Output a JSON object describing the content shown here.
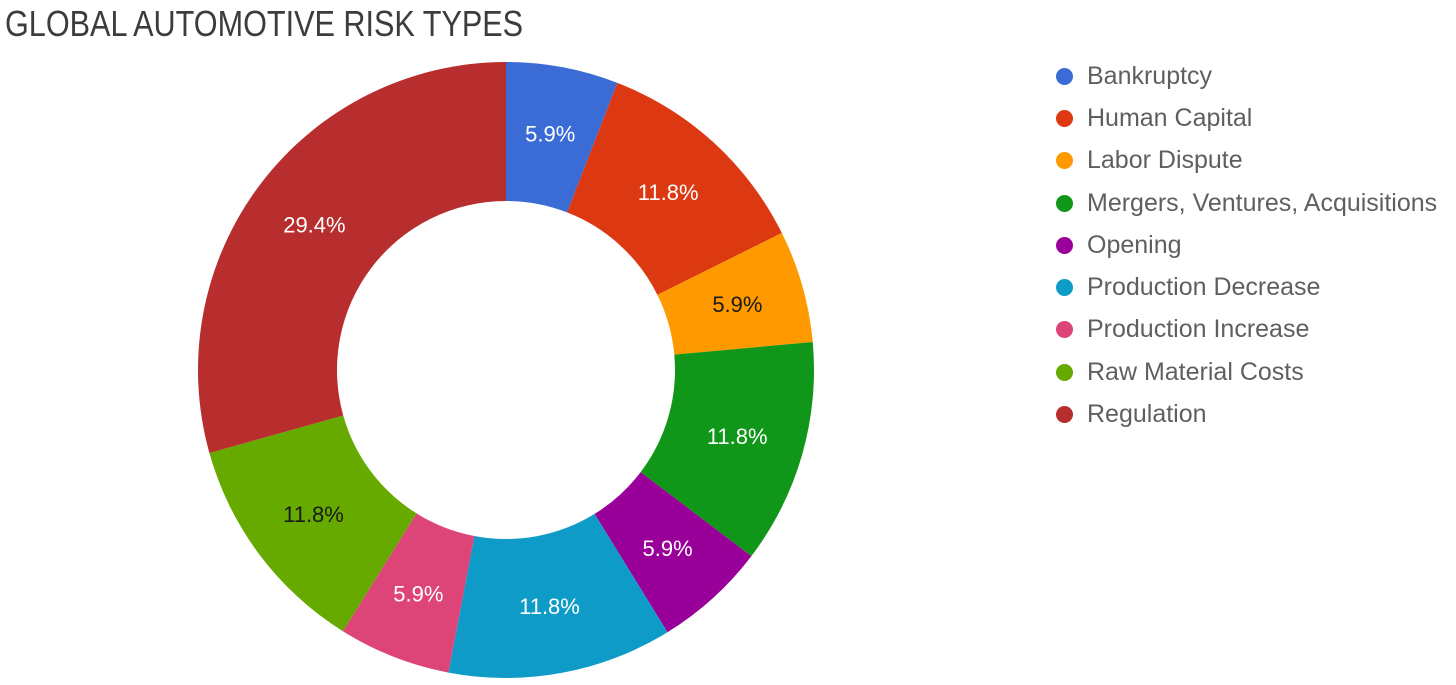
{
  "header": {
    "title": "GLOBAL AUTOMOTIVE RISK TYPES"
  },
  "chart_data": {
    "type": "pie",
    "subtype": "donut",
    "title": "GLOBAL AUTOMOTIVE RISK TYPES",
    "legend_position": "right",
    "direction": "clockwise",
    "start_angle_deg": 0,
    "hole_ratio": 0.55,
    "background_color": "#ffffff",
    "title_color": "#3c3c3c",
    "legend_text_color": "#5f5f5f",
    "categories": [
      "Bankruptcy",
      "Human Capital",
      "Labor Dispute",
      "Mergers, Ventures, Acquisitions",
      "Opening",
      "Production Decrease",
      "Production Increase",
      "Raw Material Costs",
      "Regulation"
    ],
    "values": [
      5.9,
      11.8,
      5.9,
      11.8,
      5.9,
      11.8,
      5.9,
      11.8,
      29.4
    ],
    "percent_labels": [
      "5.9%",
      "11.8%",
      "5.9%",
      "11.8%",
      "5.9%",
      "11.8%",
      "5.9%",
      "11.8%",
      "29.4%"
    ],
    "colors": [
      "#3b6bd5",
      "#dc3912",
      "#ff9900",
      "#109618",
      "#990099",
      "#0f9bc8",
      "#dd4477",
      "#66aa00",
      "#b82e2e"
    ],
    "slice_label_colors": [
      "#ffffff",
      "#ffffff",
      "#1a1a1a",
      "#ffffff",
      "#ffffff",
      "#ffffff",
      "#ffffff",
      "#1a1a1a",
      "#ffffff"
    ]
  }
}
